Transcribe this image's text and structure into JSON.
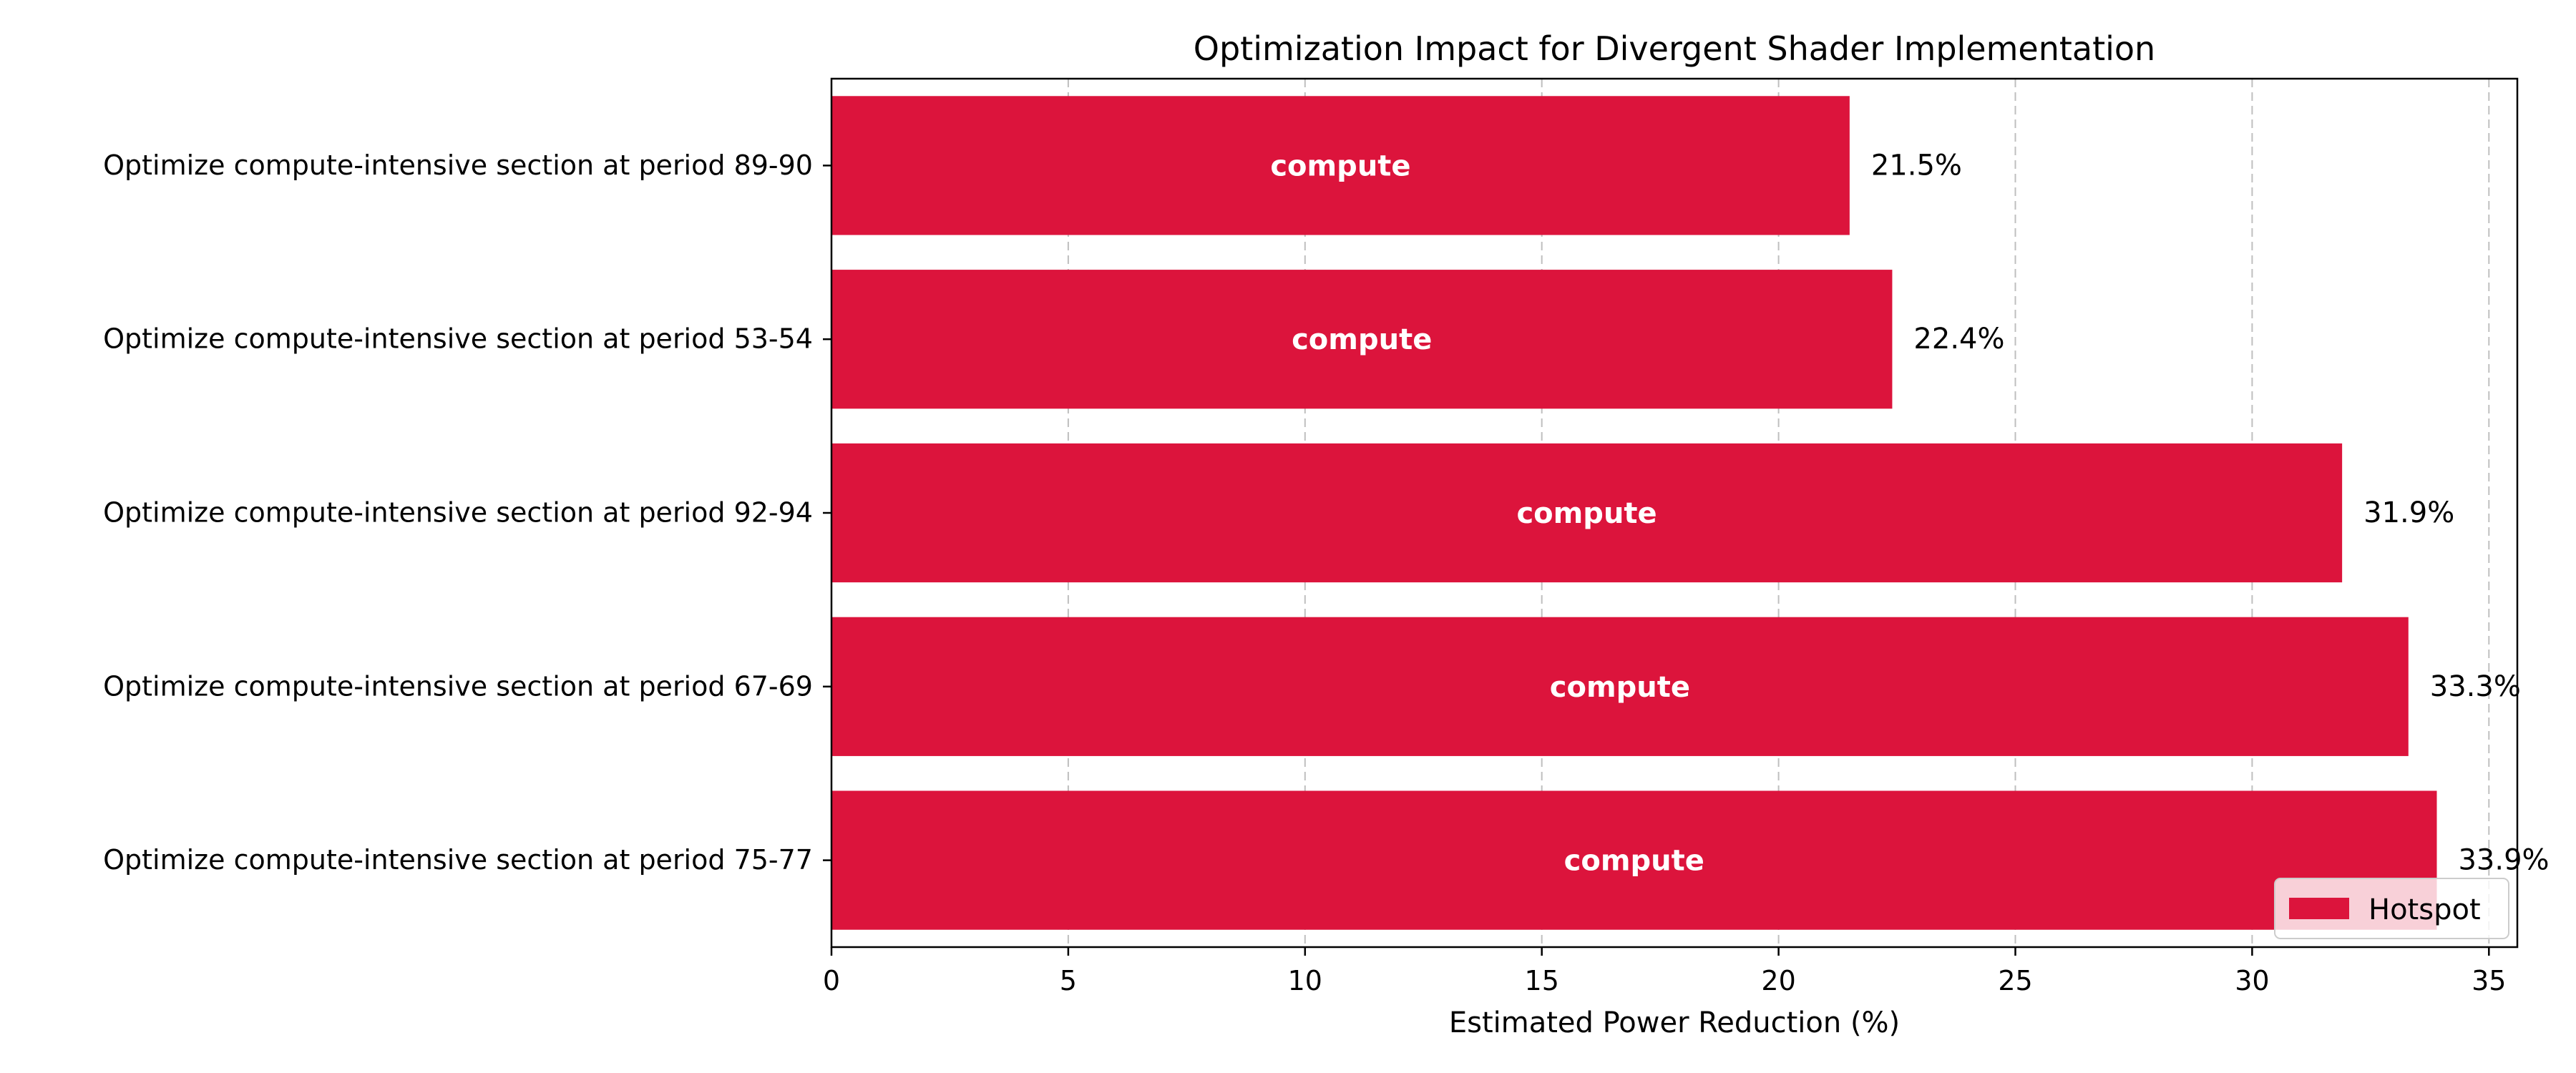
{
  "chart_data": {
    "type": "bar",
    "orientation": "horizontal",
    "title": "Optimization Impact for Divergent Shader Implementation",
    "xlabel": "Estimated Power Reduction (%)",
    "ylabel": "",
    "xlim": [
      0,
      35.6
    ],
    "xticks": [
      0,
      5,
      10,
      15,
      20,
      25,
      30,
      35
    ],
    "grid": "x-dashed",
    "categories": [
      "Optimize compute-intensive section at period 89-90",
      "Optimize compute-intensive section at period 53-54",
      "Optimize compute-intensive section at period 92-94",
      "Optimize compute-intensive section at period 67-69",
      "Optimize compute-intensive section at period 75-77"
    ],
    "values": [
      21.5,
      22.4,
      31.9,
      33.3,
      33.9
    ],
    "value_labels": [
      "21.5%",
      "22.4%",
      "31.9%",
      "33.3%",
      "33.9%"
    ],
    "bar_labels": [
      "compute",
      "compute",
      "compute",
      "compute",
      "compute"
    ],
    "series": [
      {
        "name": "Hotspot",
        "color": "#dc143c",
        "values": [
          21.5,
          22.4,
          31.9,
          33.3,
          33.9
        ]
      }
    ],
    "legend": {
      "position": "lower-right",
      "entries": [
        "Hotspot"
      ]
    }
  }
}
